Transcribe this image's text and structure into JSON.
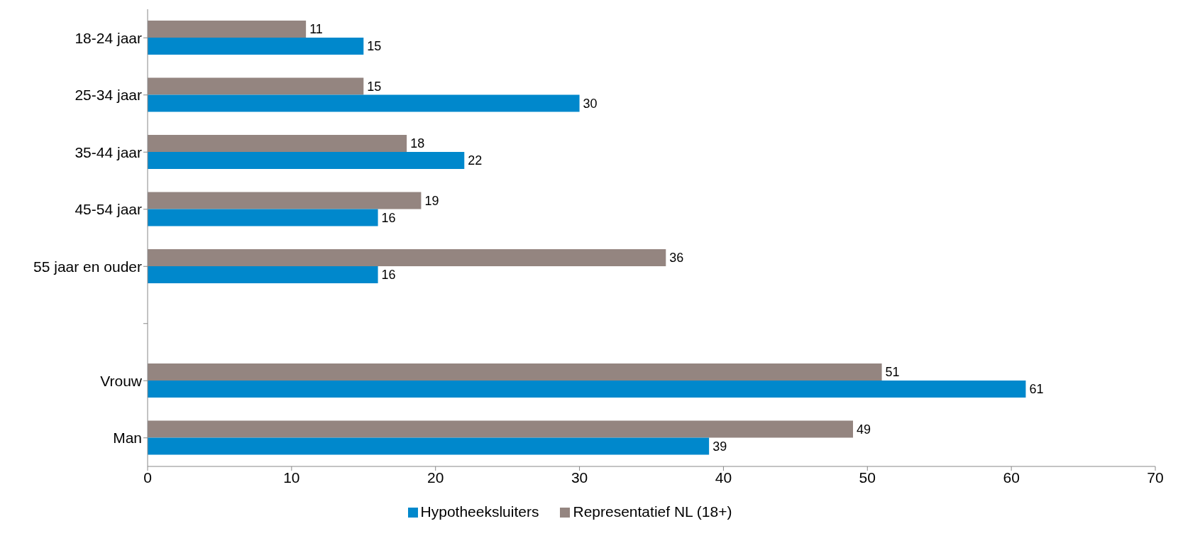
{
  "chart_data": {
    "type": "bar",
    "orientation": "horizontal",
    "categories": [
      "18-24 jaar",
      "25-34 jaar",
      "35-44 jaar",
      "45-54 jaar",
      "55 jaar en ouder",
      null,
      "Vrouw",
      "Man"
    ],
    "series": [
      {
        "name": "Representatief NL (18+)",
        "color": "#948580",
        "values": [
          11,
          15,
          18,
          19,
          36,
          null,
          51,
          49
        ]
      },
      {
        "name": "Hypotheeksluiters",
        "color": "#0088cc",
        "values": [
          15,
          30,
          22,
          16,
          16,
          null,
          61,
          39
        ]
      }
    ],
    "xlim": [
      0,
      70
    ],
    "xticks": [
      0,
      10,
      20,
      30,
      40,
      50,
      60,
      70
    ],
    "data_labels": true,
    "legend": "bottom",
    "grid": false
  }
}
